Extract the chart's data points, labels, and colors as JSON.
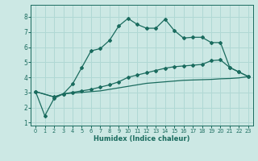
{
  "xlabel": "Humidex (Indice chaleur)",
  "background_color": "#cce8e4",
  "grid_color": "#b0d8d4",
  "line_color": "#1a6b5e",
  "xlim": [
    -0.5,
    23.5
  ],
  "ylim": [
    0.8,
    8.8
  ],
  "xticks": [
    0,
    1,
    2,
    3,
    4,
    5,
    6,
    7,
    8,
    9,
    10,
    11,
    12,
    13,
    14,
    15,
    16,
    17,
    18,
    19,
    20,
    21,
    22,
    23
  ],
  "yticks": [
    1,
    2,
    3,
    4,
    5,
    6,
    7,
    8
  ],
  "line1_x": [
    0,
    1,
    2,
    3,
    4,
    5,
    6,
    7,
    8,
    9,
    10,
    11,
    12,
    13,
    14,
    15,
    16,
    17,
    18,
    19,
    20,
    21,
    22,
    23
  ],
  "line1_y": [
    3.05,
    1.45,
    2.6,
    2.9,
    3.55,
    4.65,
    5.75,
    5.9,
    6.45,
    7.4,
    7.9,
    7.5,
    7.25,
    7.25,
    7.85,
    7.1,
    6.6,
    6.65,
    6.65,
    6.3,
    6.3,
    4.65,
    4.35,
    4.05
  ],
  "line2_x": [
    0,
    2,
    3,
    4,
    5,
    6,
    7,
    8,
    9,
    10,
    11,
    12,
    13,
    14,
    15,
    16,
    17,
    18,
    19,
    20,
    21,
    22,
    23
  ],
  "line2_y": [
    3.05,
    2.7,
    2.9,
    3.0,
    3.1,
    3.2,
    3.35,
    3.5,
    3.7,
    4.0,
    4.15,
    4.3,
    4.45,
    4.6,
    4.7,
    4.75,
    4.8,
    4.85,
    5.1,
    5.15,
    4.65,
    4.35,
    4.05
  ],
  "line3_x": [
    0,
    2,
    3,
    4,
    5,
    6,
    7,
    8,
    9,
    10,
    11,
    12,
    13,
    14,
    15,
    16,
    17,
    18,
    19,
    20,
    21,
    22,
    23
  ],
  "line3_y": [
    3.05,
    2.7,
    2.9,
    2.95,
    3.0,
    3.05,
    3.1,
    3.2,
    3.3,
    3.4,
    3.5,
    3.6,
    3.65,
    3.7,
    3.75,
    3.8,
    3.82,
    3.84,
    3.86,
    3.9,
    3.92,
    3.96,
    4.05
  ]
}
